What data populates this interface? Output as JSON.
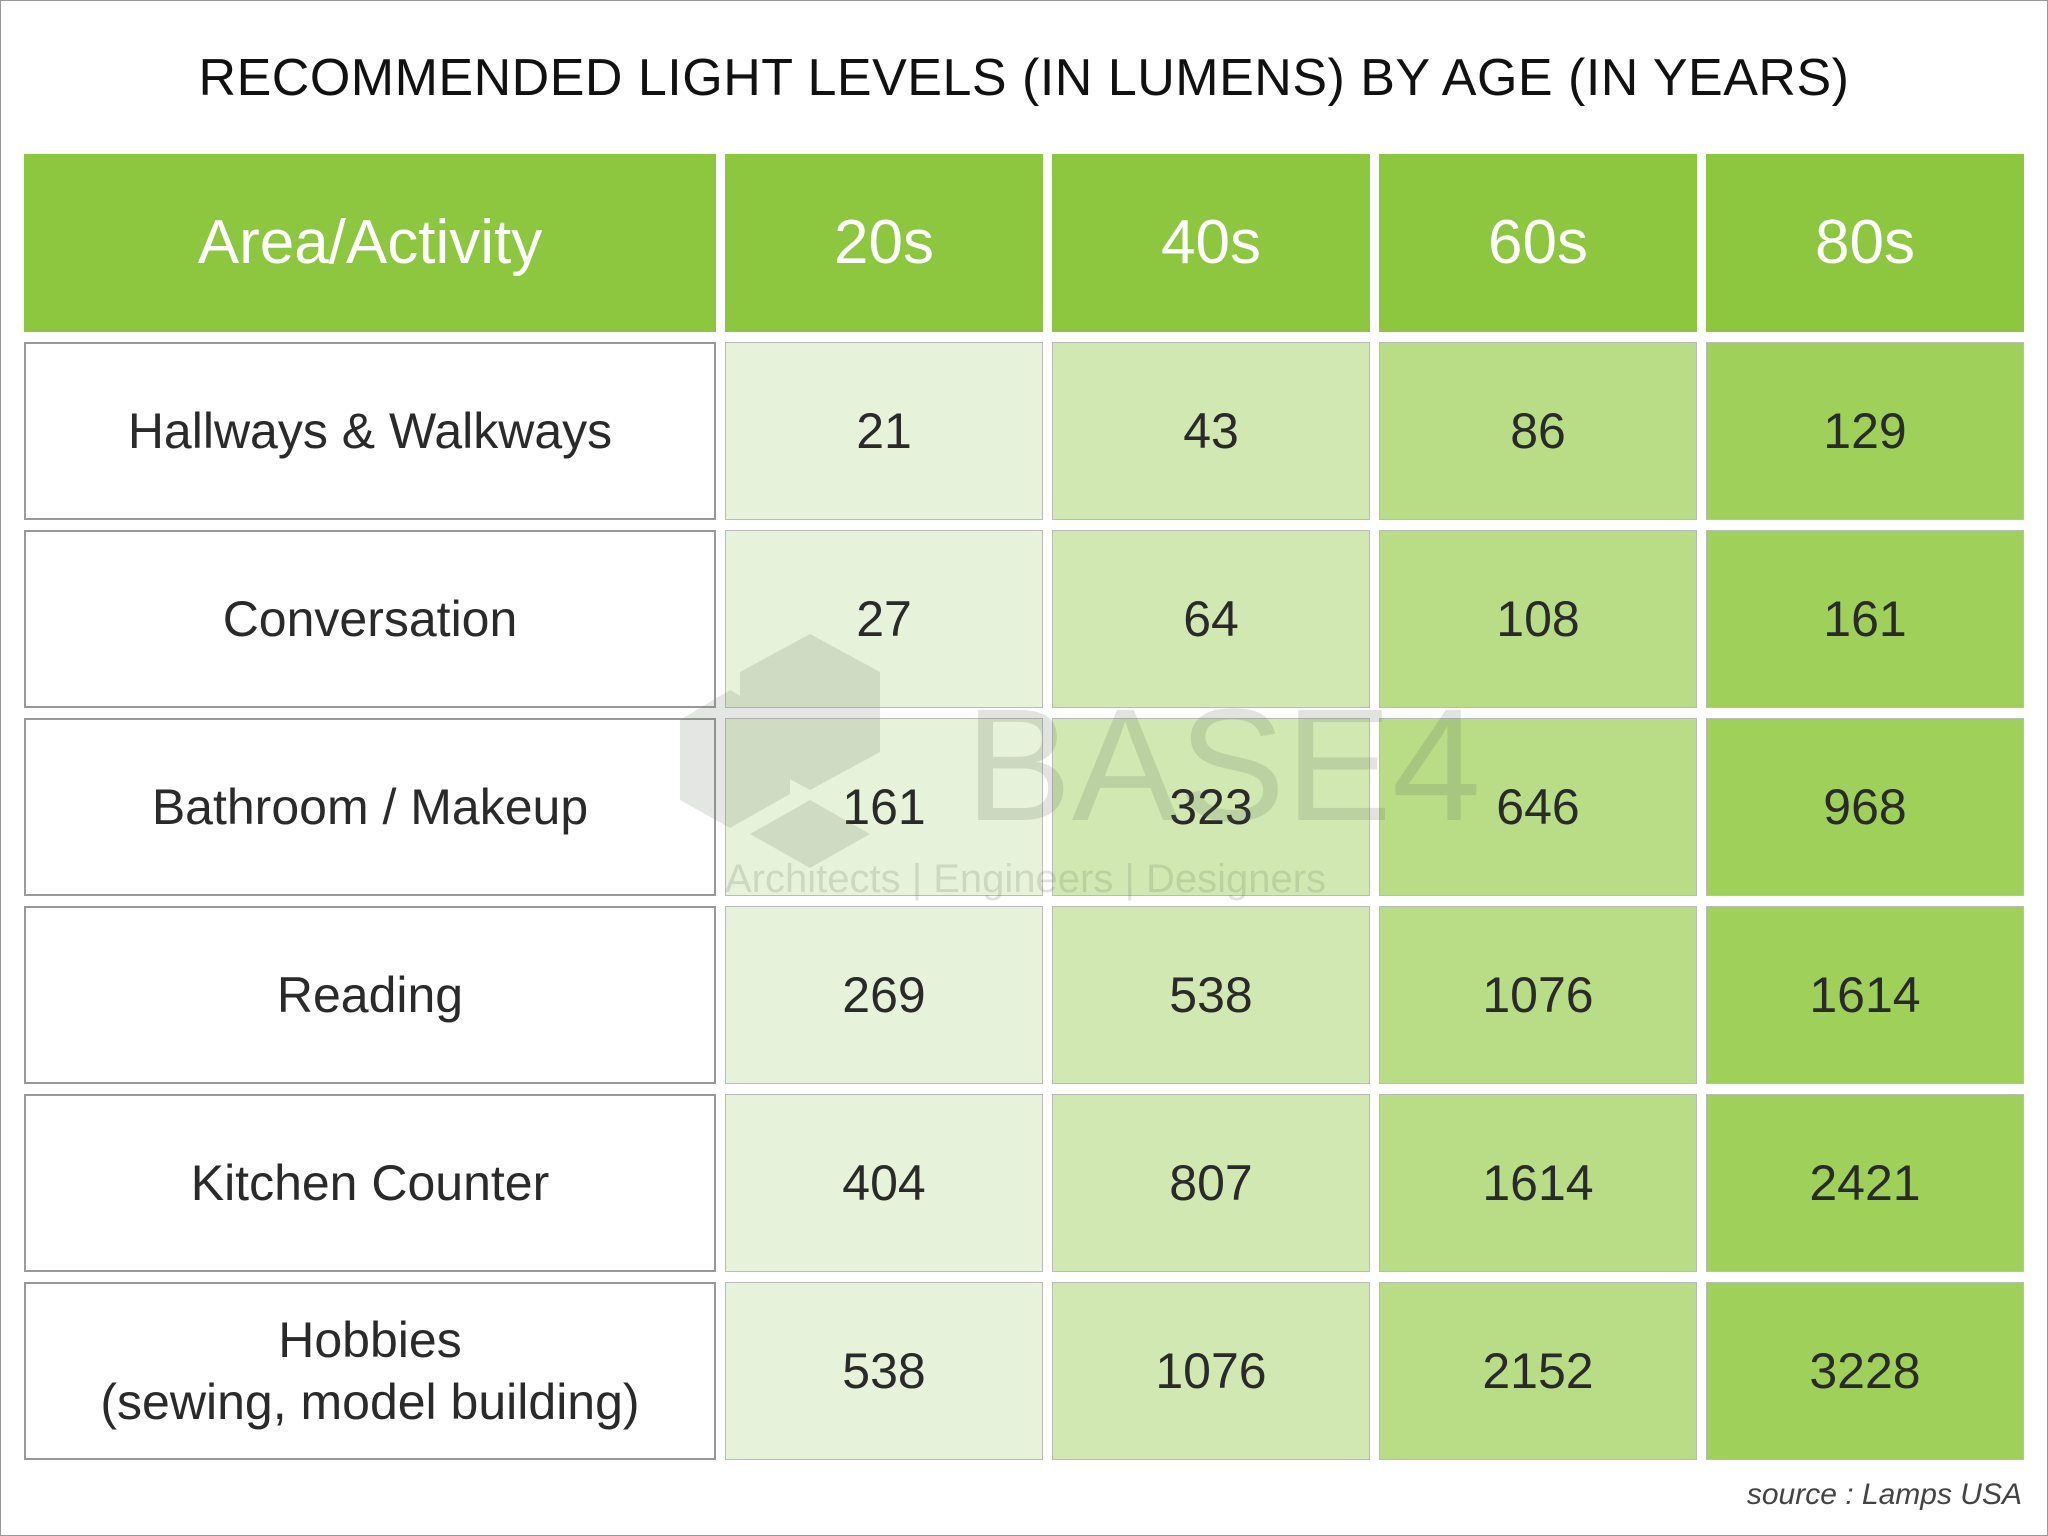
{
  "title": "RECOMMENDED LIGHT LEVELS (IN LUMENS) BY AGE (IN YEARS)",
  "table": {
    "header": [
      "Area/Activity",
      "20s",
      "40s",
      "60s",
      "80s"
    ],
    "rows": [
      [
        "Hallways & Walkways",
        21,
        43,
        86,
        129
      ],
      [
        "Conversation",
        27,
        64,
        108,
        161
      ],
      [
        "Bathroom / Makeup",
        161,
        323,
        646,
        968
      ],
      [
        "Reading",
        269,
        538,
        1076,
        1614
      ],
      [
        "Kitchen Counter",
        404,
        807,
        1614,
        2421
      ],
      [
        "Hobbies\n(sewing, model building)",
        538,
        1076,
        2152,
        3228
      ]
    ]
  },
  "watermark": {
    "name": "BASE4",
    "tagline": "Architects | Engineers | Designers"
  },
  "source": "source : Lamps USA"
}
